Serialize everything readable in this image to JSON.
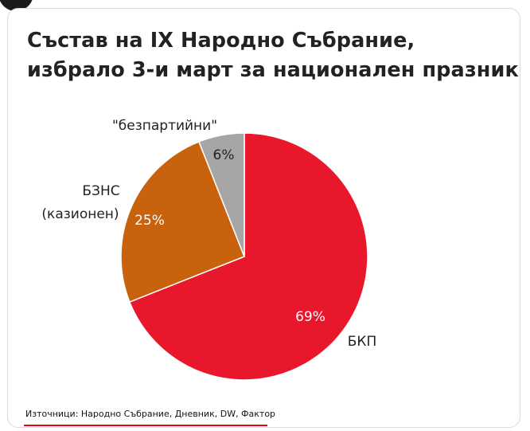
{
  "title_lines": [
    "Състав на IX Народно Събрание,",
    "избрало 3-и март за национален празник"
  ],
  "chart_data": {
    "type": "pie",
    "title": "Състав на IX Народно Събрание, избрало 3-и март за национален празник",
    "slices": [
      {
        "label": "БКП",
        "value": 69,
        "value_label": "69%",
        "color": "#e8172b"
      },
      {
        "label": "БЗНС (казионен)",
        "label_lines": [
          "БЗНС",
          "(казионен)"
        ],
        "value": 25,
        "value_label": "25%",
        "color": "#c8620c"
      },
      {
        "label": "\"безпартийни\"",
        "value": 6,
        "value_label": "6%",
        "color": "#a6a6a6"
      }
    ]
  },
  "source": "Източници: Народно Събрание, Дневник, DW, Фактор"
}
